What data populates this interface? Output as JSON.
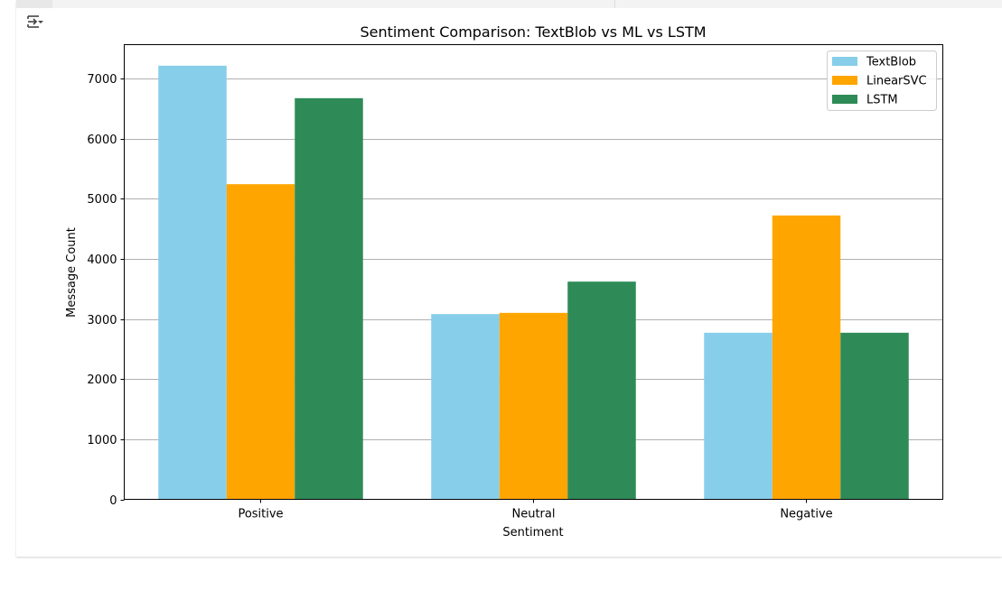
{
  "output": {
    "toggle_icon": "output-settings-icon"
  },
  "chart_data": {
    "type": "bar",
    "title": "Sentiment Comparison: TextBlob vs ML vs LSTM",
    "xlabel": "Sentiment",
    "ylabel": "Message Count",
    "categories": [
      "Positive",
      "Neutral",
      "Negative"
    ],
    "series": [
      {
        "name": "TextBlob",
        "color": "#87ceeb",
        "values": [
          7210,
          3080,
          2770
        ]
      },
      {
        "name": "LinearSVC",
        "color": "#ffa500",
        "values": [
          5240,
          3100,
          4720
        ]
      },
      {
        "name": "LSTM",
        "color": "#2e8b57",
        "values": [
          6670,
          3620,
          2770
        ]
      }
    ],
    "ylim": [
      0,
      7560
    ],
    "yticks": [
      0,
      1000,
      2000,
      3000,
      4000,
      5000,
      6000,
      7000
    ],
    "grid": "y",
    "legend_position": "top-right"
  }
}
